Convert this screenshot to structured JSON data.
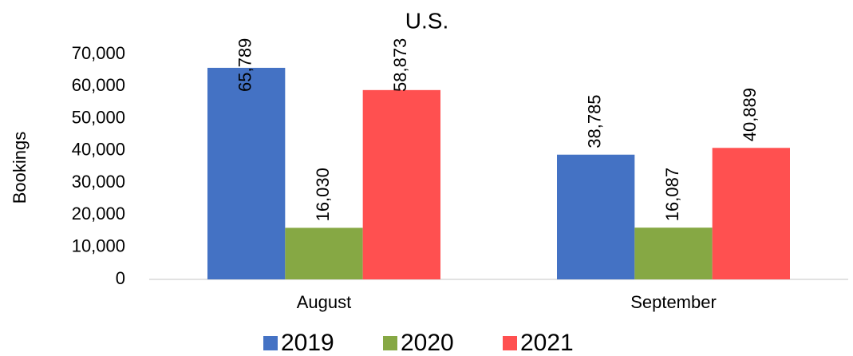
{
  "chart_data": {
    "type": "bar",
    "title": "U.S.",
    "y_label": "Bookings",
    "categories": [
      "August",
      "September"
    ],
    "series": [
      {
        "name": "2019",
        "color": "#4472c4",
        "values": [
          65789,
          38785
        ],
        "value_labels": [
          "65,789",
          "38,785"
        ]
      },
      {
        "name": "2020",
        "color": "#86a844",
        "values": [
          16030,
          16087
        ],
        "value_labels": [
          "16,030",
          "16,087"
        ]
      },
      {
        "name": "2021",
        "color": "#ff5050",
        "values": [
          58873,
          40889
        ],
        "value_labels": [
          "58,873",
          "40,889"
        ]
      }
    ],
    "ylim": [
      0,
      70000
    ],
    "yticks": [
      0,
      {
        "value": 10000,
        "label": "10,000"
      },
      {
        "value": 20000,
        "label": "20,000"
      },
      {
        "value": 30000,
        "label": "30,000"
      },
      {
        "value": 40000,
        "label": "40,000"
      },
      {
        "value": 50000,
        "label": "50,000"
      },
      {
        "value": 60000,
        "label": "60,000"
      },
      {
        "value": 70000,
        "label": "70,000"
      }
    ],
    "grid": false,
    "legend": "bottom"
  }
}
